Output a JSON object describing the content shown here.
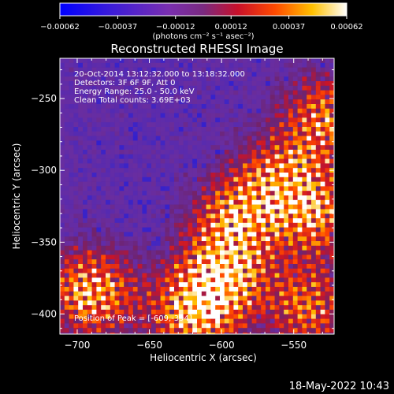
{
  "chart_data": {
    "type": "heatmap",
    "title": "Reconstructed RHESSI Image",
    "xlabel": "Heliocentric X (arcsec)",
    "ylabel": "Heliocentric Y (arcsec)",
    "xlim": [
      -712,
      -522
    ],
    "ylim": [
      -414,
      -222
    ],
    "x_ticks": [
      -700,
      -650,
      -600,
      -550
    ],
    "y_ticks": [
      -250,
      -300,
      -350,
      -400
    ],
    "x_tick_labels": [
      "−700",
      "−650",
      "−600",
      "−550"
    ],
    "y_tick_labels": [
      "−250",
      "−300",
      "−350",
      "−400"
    ],
    "colorbar": {
      "range": [
        -0.00062,
        0.00062
      ],
      "tick_values": [
        -0.00062,
        -0.00037,
        -0.00012,
        0.00012,
        0.00037,
        0.00062
      ],
      "tick_labels": [
        "−0.00062",
        "−0.00037",
        "−0.00012",
        "0.00012",
        "0.00037",
        "0.00062"
      ],
      "unit_label": "(photons cm⁻² s⁻¹ asec⁻²)",
      "colormap": "rhessi-blue-purple-red-yellow-white"
    },
    "annotations": [
      "20-Oct-2014 13:12:32.000 to 13:18:32.000",
      "Detectors: 3F 6F 9F, Att 0",
      "Energy Range: 25.0 - 50.0 keV",
      "Clean     Total counts: 3.69E+03"
    ],
    "peak_label": "Position of Peak = [-609,-394]",
    "peak_position": [
      -609,
      -394
    ],
    "bright_regions": [
      {
        "x": -690,
        "y": -385,
        "weight": 1.0
      },
      {
        "x": -600,
        "y": -375,
        "weight": 0.95
      },
      {
        "x": -620,
        "y": -400,
        "weight": 0.9
      },
      {
        "x": -590,
        "y": -335,
        "weight": 0.85
      },
      {
        "x": -535,
        "y": -330,
        "weight": 0.8
      },
      {
        "x": -528,
        "y": -265,
        "weight": 0.8
      },
      {
        "x": -540,
        "y": -395,
        "weight": 0.75
      },
      {
        "x": -560,
        "y": -305,
        "weight": 0.7
      }
    ]
  },
  "footer": {
    "timestamp": "18-May-2022 10:43"
  },
  "colors": {
    "background": "#000000",
    "foreground": "#ffffff"
  }
}
